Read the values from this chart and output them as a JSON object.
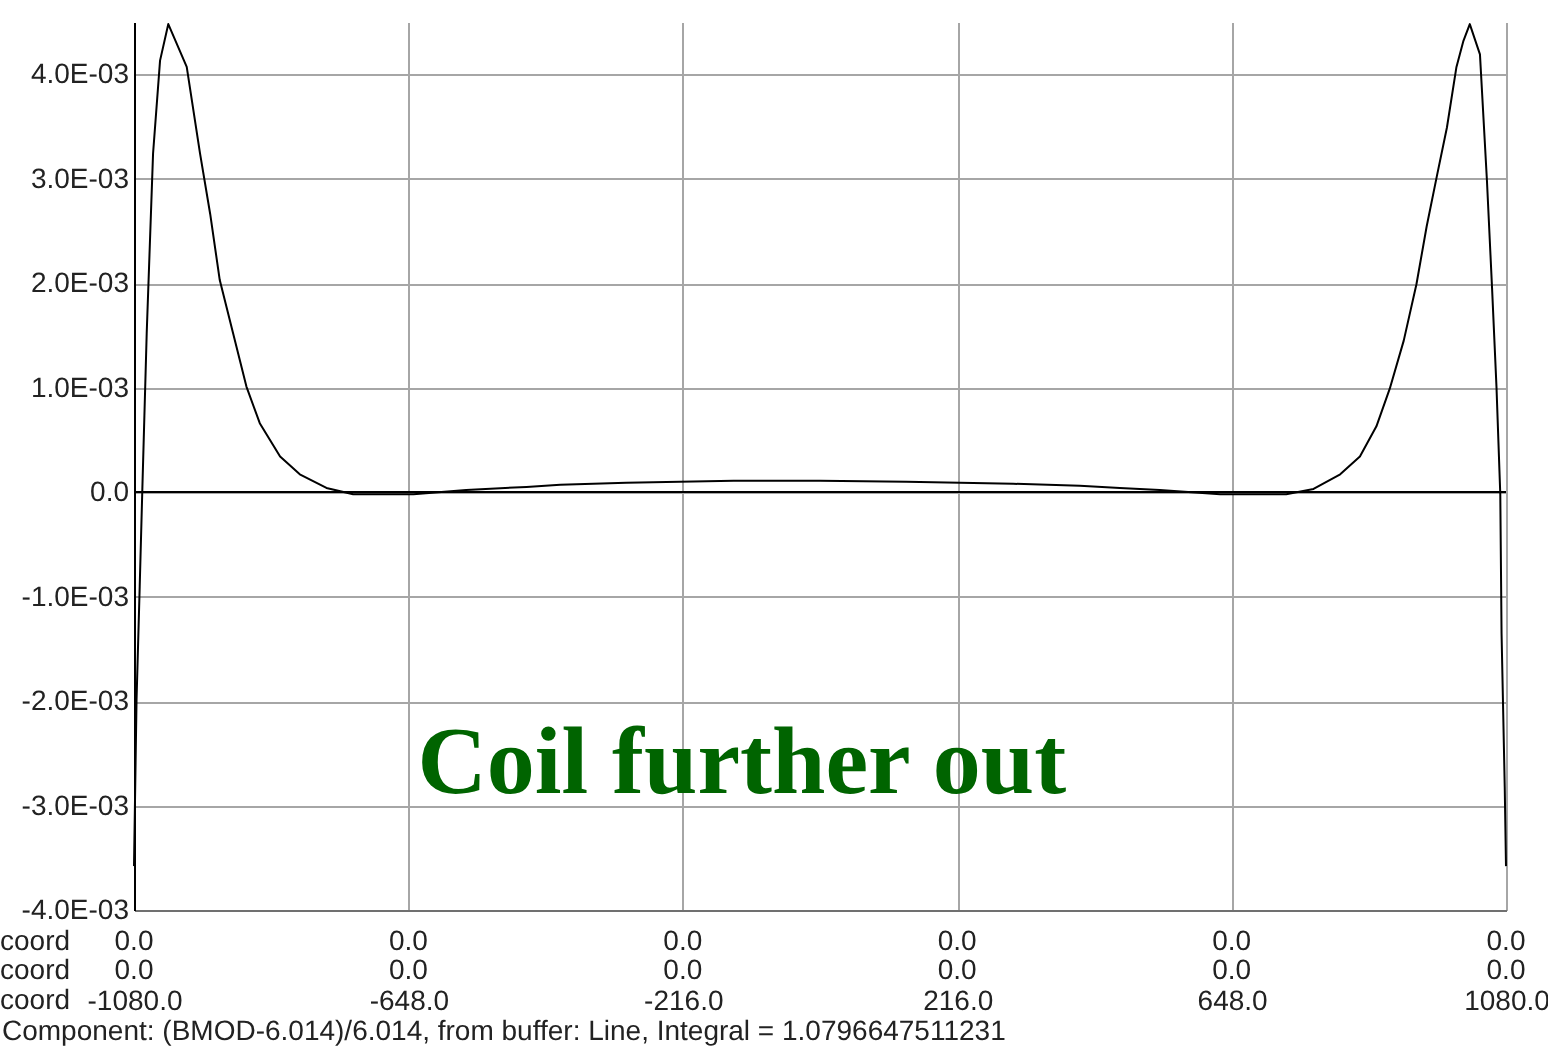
{
  "chart_data": {
    "type": "line",
    "xlabel": "coord\ncoord\ncoord",
    "annotations": [
      "Coil further out",
      "Component: (BMOD-6.014)/6.014, from buffer: Line, Integral = 1.0796647511231",
      "0.0\n0.0",
      "0.0\n0.0",
      "0.0\n0.0",
      "0.0\n0.0",
      "0.0\n0.0",
      "0.0\n0.0"
    ],
    "x": [
      -1080,
      -1076,
      -1071,
      -1067,
      -1060,
      -1050,
      -1039,
      -1026,
      -997,
      -976,
      -960,
      -945,
      -924,
      -903,
      -882,
      -850,
      -819,
      -777,
      -735,
      -640,
      -557,
      -462,
      -409,
      -305,
      -136,
      0,
      136,
      304,
      409,
      472,
      535,
      630,
      734,
      777,
      819,
      850,
      876,
      897,
      919,
      939,
      955,
      971,
      987,
      1002,
      1013,
      1023,
      1039,
      1050,
      1058,
      1065,
      1071,
      1073,
      1078,
      1080
    ],
    "series": [
      {
        "color": "#000000",
        "values": [
          -0.00358,
          -0.00199,
          -0.0009,
          0.0,
          0.00152,
          0.00324,
          0.00413,
          0.00448,
          0.00407,
          0.00324,
          0.00266,
          0.00203,
          0.00152,
          0.00101,
          0.00066,
          0.00034,
          0.00017,
          4e-05,
          -2e-05,
          -2e-05,
          2e-05,
          5e-05,
          7e-05,
          9e-05,
          0.00011,
          0.00011,
          0.0001,
          8e-05,
          6e-05,
          4e-05,
          2e-05,
          -2e-05,
          -2e-05,
          3e-05,
          0.00017,
          0.00034,
          0.00063,
          0.00099,
          0.00145,
          0.00199,
          0.00254,
          0.00302,
          0.00349,
          0.00407,
          0.00432,
          0.00448,
          0.00419,
          0.00298,
          0.00196,
          0.00101,
          -2e-05,
          -0.00135,
          -0.00282,
          -0.00358
        ]
      }
    ],
    "xlim": [
      -1080,
      1080
    ],
    "xticks": [
      {
        "value": -1080,
        "label": "-1080.0"
      },
      {
        "value": -648,
        "label": "-648.0"
      },
      {
        "value": -216,
        "label": "-216.0"
      },
      {
        "value": 216,
        "label": "216.0"
      },
      {
        "value": 648,
        "label": "648.0"
      },
      {
        "value": 1080,
        "label": "1080.0"
      }
    ],
    "ylim": [
      -0.004,
      0.0045
    ],
    "yticks": [
      {
        "value": -0.004,
        "label": "-4.0E-03"
      },
      {
        "value": -0.003,
        "label": "-3.0E-03"
      },
      {
        "value": -0.002,
        "label": "-2.0E-03"
      },
      {
        "value": -0.001,
        "label": "-1.0E-03"
      },
      {
        "value": 0,
        "label": "0.0"
      },
      {
        "value": 0.001,
        "label": "1.0E-03"
      },
      {
        "value": 0.002,
        "label": "2.0E-03"
      },
      {
        "value": 0.003,
        "label": "3.0E-03"
      },
      {
        "value": 0.004,
        "label": "4.0E-03"
      }
    ],
    "ref_lines": [
      {
        "axis": "y",
        "value": 0,
        "color": "#000000"
      }
    ],
    "grid": true
  }
}
